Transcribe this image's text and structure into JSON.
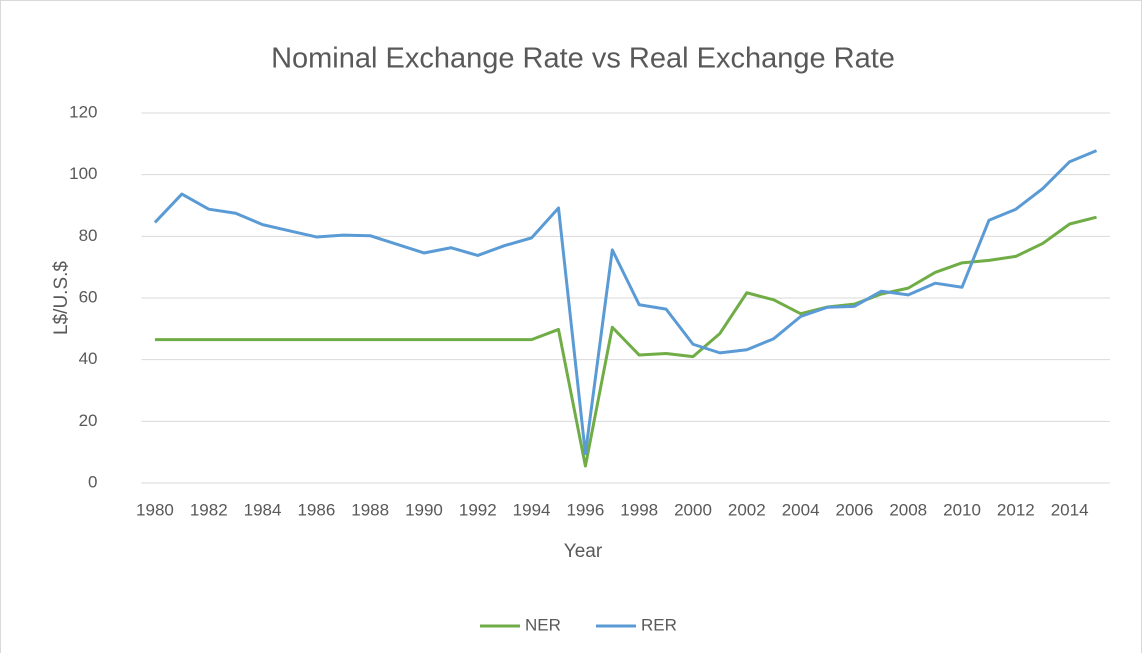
{
  "chart_data": {
    "type": "line",
    "title": "Nominal Exchange Rate vs Real Exchange Rate",
    "x_label": "Year",
    "y_label": "L$/U.S.$",
    "categories": [
      "1980",
      null,
      "1982",
      null,
      "1984",
      null,
      "1986",
      null,
      "1988",
      null,
      "1990",
      null,
      "1992",
      null,
      "1994",
      null,
      "1996",
      null,
      "1998",
      null,
      "2000",
      null,
      "2002",
      null,
      "2004",
      null,
      "2006",
      null,
      "2008",
      null,
      "2010",
      null,
      "2012",
      null,
      "2014",
      null
    ],
    "series": [
      {
        "name": "NER",
        "color": "#70ad47",
        "values": [
          46.5,
          46.5,
          46.5,
          46.5,
          46.5,
          46.5,
          46.5,
          46.5,
          46.5,
          46.5,
          46.5,
          46.5,
          46.5,
          46.5,
          46.5,
          49.8,
          5.5,
          50.5,
          41.5,
          42,
          41,
          48.5,
          61.7,
          59.4,
          54.9,
          57.1,
          58,
          61.3,
          63.2,
          68.3,
          71.4,
          72.2,
          73.5,
          77.7,
          84,
          86.2
        ]
      },
      {
        "name": "RER",
        "color": "#5b9bd5",
        "values": [
          84.5,
          93.7,
          88.8,
          87.5,
          83.8,
          81.8,
          79.8,
          80.4,
          80.2,
          77.4,
          74.6,
          76.3,
          73.8,
          77,
          79.5,
          89.2,
          9.5,
          75.6,
          57.8,
          56.4,
          45,
          42.2,
          43.2,
          46.8,
          54,
          57,
          57.3,
          62.2,
          61,
          64.8,
          63.5,
          85.2,
          88.8,
          95.5,
          104.2,
          107.8
        ]
      }
    ],
    "ylim": [
      0,
      120
    ],
    "yticks": [
      0,
      20,
      40,
      60,
      80,
      100,
      120
    ],
    "grid": true,
    "legend": "bottom"
  }
}
